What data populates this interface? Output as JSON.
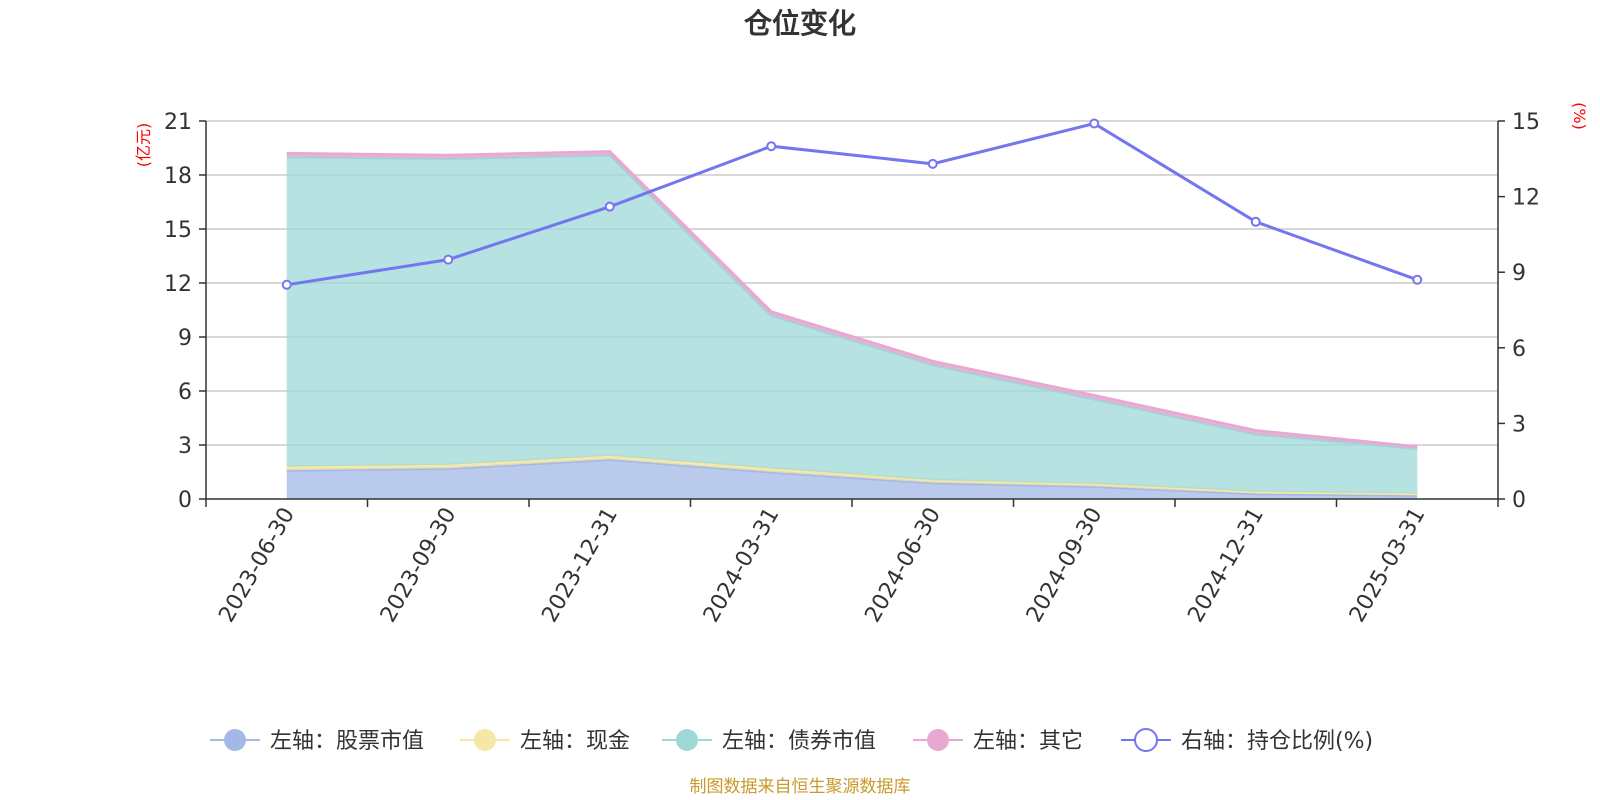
{
  "chart_data": {
    "type": "area",
    "title": "仓位变化",
    "x": [
      "2023-06-30",
      "2023-09-30",
      "2023-12-31",
      "2024-03-31",
      "2024-06-30",
      "2024-09-30",
      "2024-12-31",
      "2025-03-31"
    ],
    "left_axis": {
      "unit": "(亿元)",
      "ylim": [
        0,
        21
      ],
      "ticks": [
        "0",
        "3",
        "6",
        "9",
        "12",
        "15",
        "18",
        "21"
      ]
    },
    "right_axis": {
      "unit": "(%)",
      "ylim": [
        0,
        15
      ],
      "ticks": [
        "0",
        "3",
        "6",
        "9",
        "12",
        "15"
      ]
    },
    "series": [
      {
        "name": "左轴：股票市值",
        "axis": "left",
        "kind": "stacked-area",
        "color": "#a3b8e6",
        "values": [
          1.6,
          1.7,
          2.2,
          1.5,
          0.9,
          0.7,
          0.3,
          0.2
        ]
      },
      {
        "name": "左轴：现金",
        "axis": "left",
        "kind": "stacked-area",
        "color": "#f5e7a6",
        "values": [
          0.2,
          0.2,
          0.2,
          0.2,
          0.15,
          0.15,
          0.1,
          0.1
        ]
      },
      {
        "name": "左轴：债券市值",
        "axis": "left",
        "kind": "stacked-area",
        "color": "#9ed9d8",
        "values": [
          17.2,
          17.0,
          16.7,
          8.5,
          6.4,
          4.7,
          3.2,
          2.5
        ]
      },
      {
        "name": "左轴：其它",
        "axis": "left",
        "kind": "stacked-area",
        "color": "#e7a8d2",
        "values": [
          0.2,
          0.2,
          0.2,
          0.2,
          0.2,
          0.2,
          0.2,
          0.1
        ]
      },
      {
        "name": "右轴：持仓比例(%)",
        "axis": "right",
        "kind": "line",
        "color": "#7376ee",
        "values": [
          8.5,
          9.5,
          11.6,
          14.0,
          13.3,
          14.9,
          11.0,
          8.7
        ]
      }
    ],
    "grid": true,
    "legend_position": "bottom"
  },
  "footer": {
    "source": "制图数据来自恒生聚源数据库"
  }
}
